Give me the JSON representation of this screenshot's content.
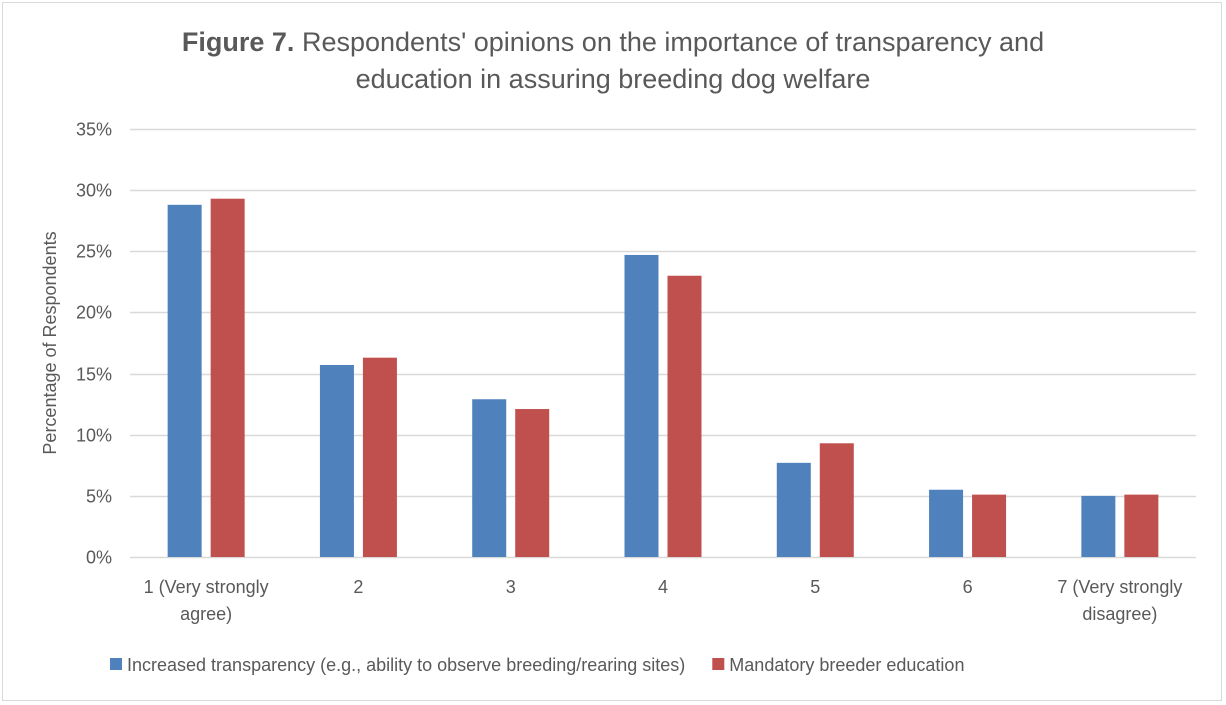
{
  "chart_data": {
    "type": "bar",
    "title_bold": "Figure 7.",
    "title_line1": "Respondents' opinions on the importance of transparency and",
    "title_line2": "education in assuring breeding dog welfare",
    "ylabel": "Percentage of Respondents",
    "xlabel": "",
    "ylim": [
      0,
      35
    ],
    "yticks": [
      "0%",
      "5%",
      "10%",
      "15%",
      "20%",
      "25%",
      "30%",
      "35%"
    ],
    "grid": true,
    "legend_position": "bottom",
    "categories": [
      [
        "1 (Very strongly",
        "agree)"
      ],
      [
        "2"
      ],
      [
        "3"
      ],
      [
        "4"
      ],
      [
        "5"
      ],
      [
        "6"
      ],
      [
        "7 (Very strongly",
        "disagree)"
      ]
    ],
    "series": [
      {
        "name": "Increased transparency (e.g., ability to observe breeding/rearing sites)",
        "color": "#4f81bd",
        "values": [
          28.8,
          15.7,
          12.9,
          24.7,
          7.7,
          5.5,
          5.0
        ]
      },
      {
        "name": "Mandatory breeder education",
        "color": "#c0504d",
        "values": [
          29.3,
          16.3,
          12.1,
          23.0,
          9.3,
          5.1,
          5.1
        ]
      }
    ]
  }
}
